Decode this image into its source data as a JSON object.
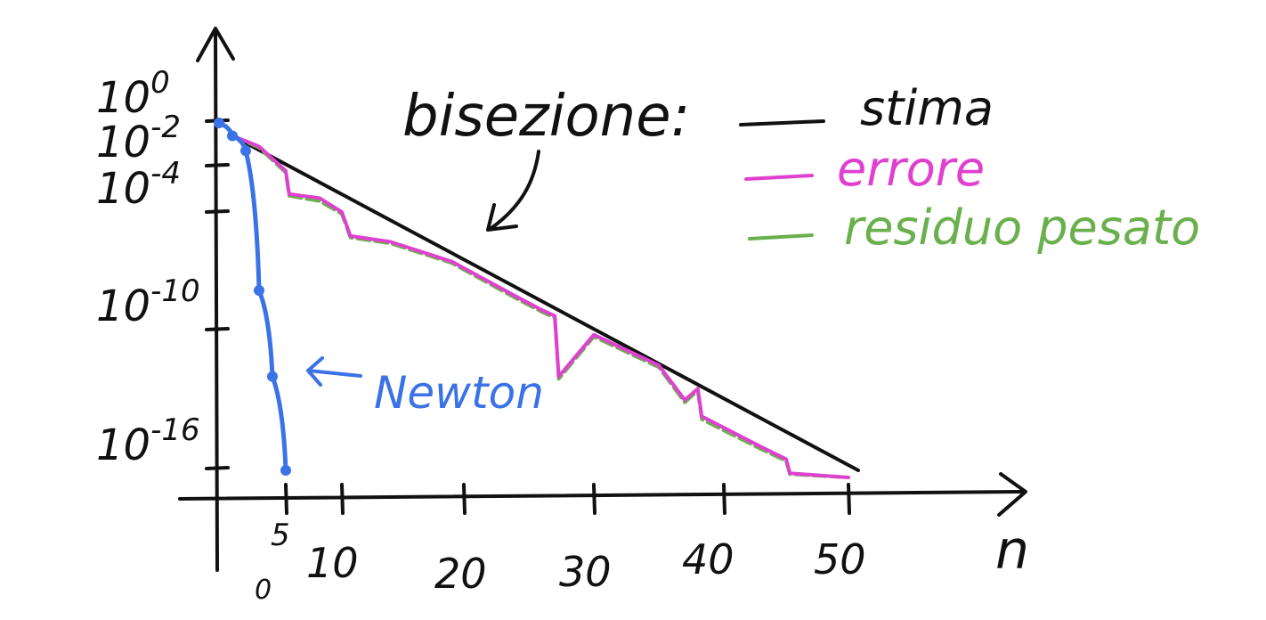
{
  "chart_data": {
    "type": "line",
    "yscale": "log",
    "xlabel": "n",
    "y_tick_labels": [
      "10^0",
      "10^-2",
      "10^-4",
      "10^-10",
      "10^-16"
    ],
    "x_tick_labels": [
      "0",
      "5",
      "10",
      "20",
      "30",
      "40",
      "50"
    ],
    "legend_title": "bisezione:",
    "series": [
      {
        "name": "stima",
        "color": "#111111",
        "x": [
          1,
          51
        ],
        "y": [
          0.25,
          1e-16
        ]
      },
      {
        "name": "errore",
        "color": "#e040d0",
        "x": [
          1,
          3,
          5,
          5.3,
          8,
          10,
          10.7,
          14,
          19,
          24,
          26,
          27,
          27.3,
          30,
          35,
          37,
          38,
          38.3,
          43,
          45,
          45.3,
          50
        ],
        "y": [
          0.25,
          0.08,
          0.006,
          0.0006,
          0.0004,
          0.0001,
          6e-06,
          3e-06,
          3e-07,
          5e-09,
          1e-09,
          5e-10,
          1e-12,
          6e-11,
          3e-12,
          1e-13,
          3e-13,
          2e-14,
          1e-15,
          3e-16,
          4e-17,
          1e-17
        ]
      },
      {
        "name": "residuo pesato",
        "color": "#6ab04c",
        "x": [
          1,
          3,
          5,
          5.3,
          8,
          10,
          10.7,
          14,
          19,
          24,
          26,
          27,
          27.3,
          30,
          35,
          37,
          38,
          38.3,
          43,
          45,
          45.3,
          50
        ],
        "y": [
          0.25,
          0.07,
          0.005,
          0.0005,
          0.0003,
          8e-05,
          5e-06,
          2.5e-06,
          2.5e-07,
          4e-09,
          8e-10,
          4e-10,
          8e-13,
          5e-11,
          2.5e-12,
          8e-14,
          2.5e-13,
          1.5e-14,
          8e-16,
          2.5e-16,
          3e-17,
          8e-18
        ]
      },
      {
        "name": "Newton",
        "color": "#3b73e6",
        "x": [
          0,
          1,
          2,
          3,
          4,
          5
        ],
        "y": [
          1,
          0.25,
          0.05,
          1e-08,
          1e-12,
          1e-16
        ]
      }
    ]
  },
  "colors": {
    "axis": "#111111",
    "stima": "#111111",
    "errore": "#e040d0",
    "residuo": "#6ab04c",
    "newton": "#3b73e6"
  }
}
